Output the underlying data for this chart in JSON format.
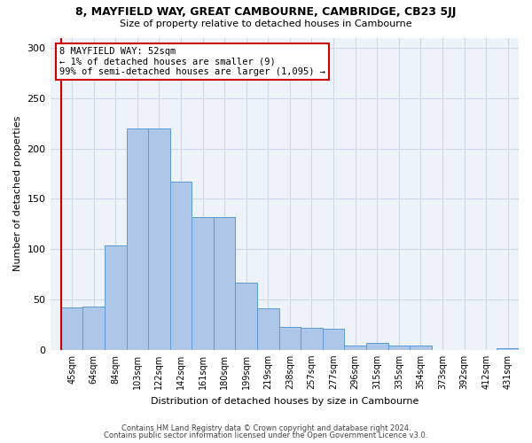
{
  "title1": "8, MAYFIELD WAY, GREAT CAMBOURNE, CAMBRIDGE, CB23 5JJ",
  "title2": "Size of property relative to detached houses in Cambourne",
  "xlabel": "Distribution of detached houses by size in Cambourne",
  "ylabel": "Number of detached properties",
  "categories": [
    "45sqm",
    "64sqm",
    "84sqm",
    "103sqm",
    "122sqm",
    "142sqm",
    "161sqm",
    "180sqm",
    "199sqm",
    "219sqm",
    "238sqm",
    "257sqm",
    "277sqm",
    "296sqm",
    "315sqm",
    "335sqm",
    "354sqm",
    "373sqm",
    "392sqm",
    "412sqm",
    "431sqm"
  ],
  "values": [
    42,
    43,
    104,
    220,
    220,
    167,
    132,
    132,
    67,
    41,
    23,
    22,
    21,
    4,
    7,
    4,
    4,
    0,
    0,
    0,
    2
  ],
  "bar_color": "#aec6e8",
  "bar_edge_color": "#5b9bd5",
  "annotation_text": "8 MAYFIELD WAY: 52sqm\n← 1% of detached houses are smaller (9)\n99% of semi-detached houses are larger (1,095) →",
  "annotation_box_color": "#ffffff",
  "annotation_box_edge": "#cc0000",
  "vline_color": "#cc0000",
  "footer1": "Contains HM Land Registry data © Crown copyright and database right 2024.",
  "footer2": "Contains public sector information licensed under the Open Government Licence v3.0.",
  "ylim": [
    0,
    310
  ],
  "grid_color": "#d0d8e8",
  "background_color": "#eef2f9"
}
